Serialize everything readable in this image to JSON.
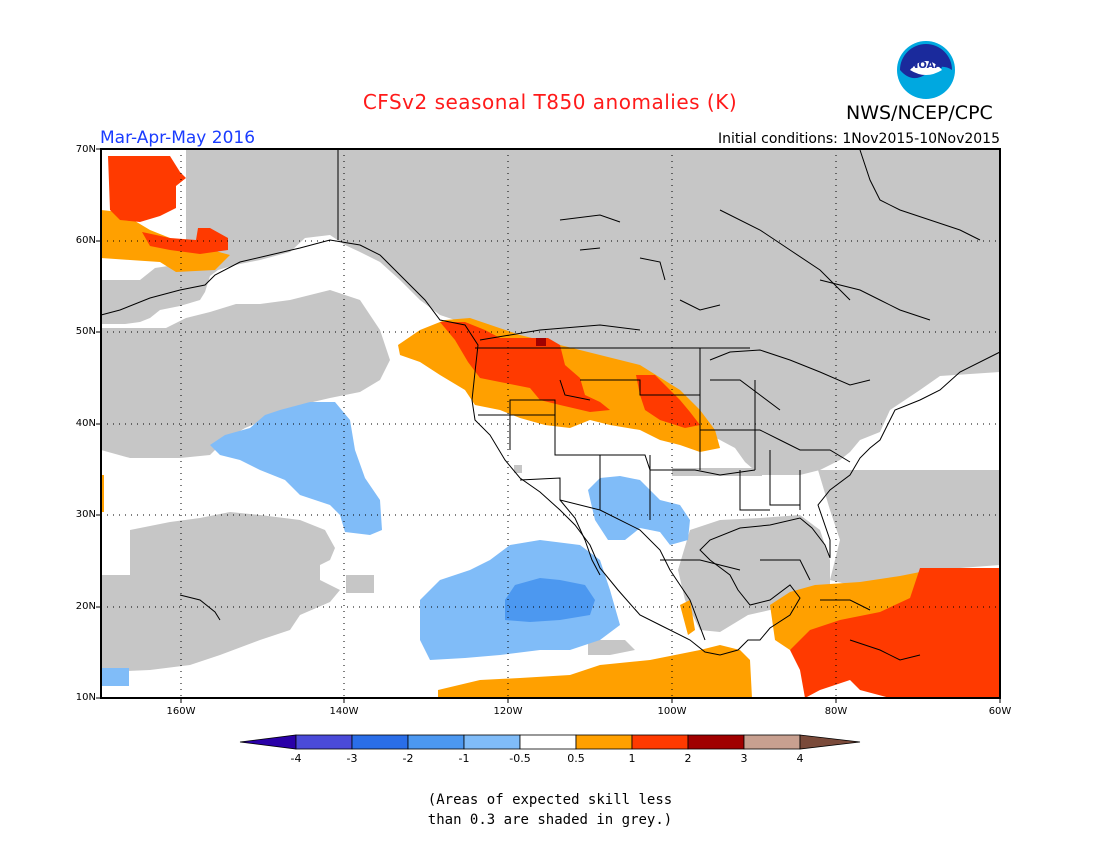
{
  "title": "CFSv2 seasonal T850 anomalies (K)",
  "agency": "NWS/NCEP/CPC",
  "period": "Mar-Apr-May 2016",
  "initial_conditions": "Initial conditions: 1Nov2015-10Nov2015",
  "logo_text": "NOAA",
  "lat_labels": [
    "70N",
    "60N",
    "50N",
    "40N",
    "30N",
    "20N",
    "10N"
  ],
  "lon_labels": [
    "160W",
    "140W",
    "120W",
    "100W",
    "80W",
    "60W"
  ],
  "colorbar": {
    "labels": [
      "-4",
      "-3",
      "-2",
      "-1",
      "-0.5",
      "0.5",
      "1",
      "2",
      "3",
      "4"
    ],
    "colors": [
      "#2a00a8",
      "#4a4ad8",
      "#2a6ee8",
      "#4c98f0",
      "#80bcf8",
      "#ffffff",
      "#ffa000",
      "#ff3a00",
      "#a00000",
      "#c8a090",
      "#7a4a3a"
    ]
  },
  "note_line1": "(Areas of expected skill less",
  "note_line2": "than 0.3 are shaded in grey.)",
  "colors": {
    "grey": "#c6c6c6",
    "orange": "#ffa000",
    "red": "#ff3a00",
    "darkred": "#a00000",
    "lightblue": "#80bcf8",
    "blue": "#4c98f0"
  }
}
